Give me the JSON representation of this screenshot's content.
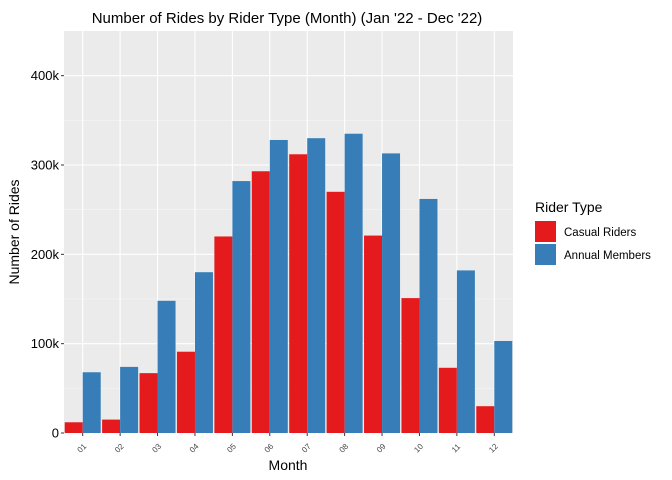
{
  "chart_data": {
    "type": "bar",
    "title": "Number of Rides by Rider Type (Month)  (Jan '22 - Dec '22)",
    "xlabel": "Month",
    "ylabel": "Number of Rides",
    "categories": [
      "01",
      "02",
      "03",
      "04",
      "05",
      "06",
      "07",
      "08",
      "09",
      "10",
      "11",
      "12"
    ],
    "series": [
      {
        "name": "Casual Riders",
        "color": "#E41A1C",
        "values": [
          12000,
          15000,
          67000,
          91000,
          220000,
          293000,
          312000,
          270000,
          221000,
          151000,
          73000,
          30000
        ]
      },
      {
        "name": "Annual Members",
        "color": "#377EB8",
        "values": [
          68000,
          74000,
          148000,
          180000,
          282000,
          328000,
          330000,
          335000,
          313000,
          262000,
          182000,
          103000
        ]
      }
    ],
    "ylim": [
      0,
      450000
    ],
    "yticks": [
      0,
      100000,
      200000,
      300000,
      400000
    ],
    "ytick_labels": [
      "0",
      "100k",
      "200k",
      "300k",
      "400k"
    ],
    "grid": true,
    "legend": {
      "title": "Rider Type",
      "placement": "right"
    },
    "panel_color": "#EBEBEB"
  }
}
